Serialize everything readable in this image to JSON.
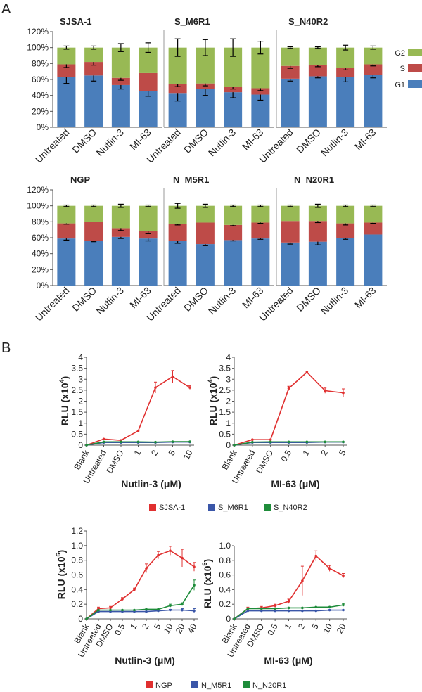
{
  "panel_labels": {
    "a": "A",
    "b": "B"
  },
  "colors": {
    "g1": "#4a7ebb",
    "s": "#be4b48",
    "g2": "#98b954",
    "red": "#e03030",
    "blue": "#3a56a8",
    "green": "#1e8c3a",
    "axis": "#555555"
  },
  "chart_data": [
    {
      "type": "bar",
      "stacked": true,
      "title": "SJSA-1",
      "categories": [
        "Untreated",
        "DMSO",
        "Nutlin-3",
        "MI-63"
      ],
      "series": [
        {
          "name": "G1",
          "values": [
            63,
            65,
            53,
            45
          ],
          "errors": [
            8,
            7,
            5,
            6
          ]
        },
        {
          "name": "S",
          "values": [
            16,
            17,
            9,
            23
          ],
          "errors": [
            4,
            4,
            3,
            0
          ]
        },
        {
          "name": "G2",
          "values": [
            21,
            18,
            38,
            32
          ],
          "errors": [
            2,
            2,
            5,
            6
          ]
        }
      ],
      "yticks": [
        "0%",
        "20%",
        "40%",
        "60%",
        "80%",
        "100%",
        "120%"
      ],
      "ylim": [
        0,
        120
      ]
    },
    {
      "type": "bar",
      "stacked": true,
      "title": "S_M6R1",
      "categories": [
        "Untreated",
        "DMSO",
        "Nutlin-3",
        "MI-63"
      ],
      "series": [
        {
          "name": "G1",
          "values": [
            43,
            48,
            44,
            41
          ],
          "errors": [
            10,
            8,
            7,
            7
          ]
        },
        {
          "name": "S",
          "values": [
            11,
            7,
            7,
            8
          ],
          "errors": [
            3,
            3,
            3,
            3
          ]
        },
        {
          "name": "G2",
          "values": [
            46,
            45,
            49,
            51
          ],
          "errors": [
            11,
            10,
            11,
            8
          ]
        }
      ],
      "yticks": [
        "0%",
        "20%",
        "40%",
        "60%",
        "80%",
        "100%",
        "120%"
      ],
      "ylim": [
        0,
        120
      ]
    },
    {
      "type": "bar",
      "stacked": true,
      "title": "S_N40R2",
      "categories": [
        "Untreated",
        "DMSO",
        "Nutlin-3",
        "MI-63"
      ],
      "series": [
        {
          "name": "G1",
          "values": [
            61,
            64,
            63,
            66
          ],
          "errors": [
            3,
            2,
            6,
            4
          ]
        },
        {
          "name": "S",
          "values": [
            16,
            14,
            12,
            13
          ],
          "errors": [
            3,
            2,
            3,
            2
          ]
        },
        {
          "name": "G2",
          "values": [
            23,
            22,
            25,
            21
          ],
          "errors": [
            1,
            1,
            3,
            2
          ]
        }
      ],
      "yticks": [
        "0%",
        "20%",
        "40%",
        "60%",
        "80%",
        "100%",
        "120%"
      ],
      "ylim": [
        0,
        120
      ]
    },
    {
      "type": "bar",
      "stacked": true,
      "title": "NGP",
      "categories": [
        "Untreated",
        "DMSO",
        "Nutlin-3",
        "MI-63"
      ],
      "series": [
        {
          "name": "G1",
          "values": [
            59,
            56,
            61,
            59
          ],
          "errors": [
            2,
            1,
            2,
            3
          ]
        },
        {
          "name": "S",
          "values": [
            19,
            24,
            11,
            9
          ],
          "errors": [
            1,
            0,
            3,
            3
          ]
        },
        {
          "name": "G2",
          "values": [
            22,
            20,
            28,
            32
          ],
          "errors": [
            1,
            1,
            2,
            1
          ]
        }
      ],
      "yticks": [
        "0%",
        "20%",
        "40%",
        "60%",
        "80%",
        "100%",
        "120%"
      ],
      "ylim": [
        0,
        120
      ]
    },
    {
      "type": "bar",
      "stacked": true,
      "title": "N_M5R1",
      "categories": [
        "Untreated",
        "DMSO",
        "Nutlin-3",
        "MI-63"
      ],
      "series": [
        {
          "name": "G1",
          "values": [
            56,
            52,
            57,
            59
          ],
          "errors": [
            3,
            2,
            1,
            1
          ]
        },
        {
          "name": "S",
          "values": [
            21,
            27,
            19,
            20
          ],
          "errors": [
            1,
            0,
            1,
            1
          ]
        },
        {
          "name": "G2",
          "values": [
            23,
            21,
            24,
            21
          ],
          "errors": [
            3,
            2,
            1,
            1
          ]
        }
      ],
      "yticks": [
        "0%",
        "20%",
        "40%",
        "60%",
        "80%",
        "100%",
        "120%"
      ],
      "ylim": [
        0,
        120
      ]
    },
    {
      "type": "bar",
      "stacked": true,
      "title": "N_N20R1",
      "categories": [
        "Untreated",
        "DMSO",
        "Nutlin-3",
        "MI-63"
      ],
      "series": [
        {
          "name": "G1",
          "values": [
            54,
            55,
            60,
            64
          ],
          "errors": [
            2,
            4,
            2,
            0
          ]
        },
        {
          "name": "S",
          "values": [
            27,
            26,
            18,
            15
          ],
          "errors": [
            0,
            2,
            2,
            1
          ]
        },
        {
          "name": "G2",
          "values": [
            19,
            19,
            22,
            21
          ],
          "errors": [
            1,
            2,
            1,
            1
          ]
        }
      ],
      "yticks": [
        "0%",
        "20%",
        "40%",
        "60%",
        "80%",
        "100%",
        "120%"
      ],
      "ylim": [
        0,
        120
      ]
    },
    {
      "type": "line",
      "categories": [
        "Blank",
        "Untreated",
        "DMSO",
        "1",
        "2",
        "5",
        "10"
      ],
      "ylabel_main": "RLU (x10",
      "ylabel_exp": "4",
      "ylabel_end": ")",
      "xlabel": "Nutlin-3 (μM)",
      "yticks": [
        "0",
        "0.5",
        "1",
        "1.5",
        "2",
        "2.5",
        "3",
        "3.5",
        "4"
      ],
      "ylim": [
        0,
        4
      ],
      "series": [
        {
          "name": "SJSA-1",
          "values": [
            0,
            0.28,
            0.22,
            0.65,
            2.62,
            3.12,
            2.62
          ],
          "errors": [
            0,
            0,
            0,
            0,
            0.25,
            0.28,
            0.08
          ]
        },
        {
          "name": "S_M6R1",
          "values": [
            0,
            0.12,
            0.12,
            0.12,
            0.12,
            0.14,
            0.14
          ],
          "errors": [
            0,
            0,
            0,
            0,
            0,
            0,
            0
          ]
        },
        {
          "name": "S_N40R2",
          "values": [
            0,
            0.15,
            0.15,
            0.15,
            0.14,
            0.16,
            0.16
          ],
          "errors": [
            0,
            0,
            0,
            0,
            0,
            0,
            0
          ]
        }
      ]
    },
    {
      "type": "line",
      "categories": [
        "Blank",
        "Untreated",
        "DMSO",
        "0.5",
        "1",
        "2",
        "5"
      ],
      "ylabel_main": "RLU (x10",
      "ylabel_exp": "4",
      "ylabel_end": ")",
      "xlabel": "MI-63 (μM)",
      "yticks": [
        "0",
        "0.5",
        "1",
        "1.5",
        "2",
        "2.5",
        "3",
        "3.5",
        "4"
      ],
      "ylim": [
        0,
        4
      ],
      "series": [
        {
          "name": "SJSA-1",
          "values": [
            0,
            0.25,
            0.25,
            2.58,
            3.32,
            2.48,
            2.38
          ],
          "errors": [
            0,
            0,
            0,
            0.1,
            0.05,
            0.12,
            0.18
          ]
        },
        {
          "name": "S_M6R1",
          "values": [
            0,
            0.12,
            0.12,
            0.12,
            0.12,
            0.14,
            0.14
          ],
          "errors": [
            0,
            0,
            0,
            0,
            0,
            0,
            0
          ]
        },
        {
          "name": "S_N40R2",
          "values": [
            0,
            0.14,
            0.15,
            0.15,
            0.15,
            0.15,
            0.15
          ],
          "errors": [
            0,
            0,
            0,
            0,
            0,
            0,
            0
          ]
        }
      ]
    },
    {
      "type": "line",
      "categories": [
        "Blank",
        "Untreated",
        "DMSO",
        "0.5",
        "1",
        "2",
        "5",
        "10",
        "20",
        "40"
      ],
      "ylabel_main": "RLU (x10",
      "ylabel_exp": "6",
      "ylabel_end": ")",
      "xlabel": "Nutlin-3 (μM)",
      "yticks": [
        "0",
        "0.2",
        "0.4",
        "0.6",
        "0.8",
        "1.0",
        "1.2"
      ],
      "ylim": [
        0,
        1.2
      ],
      "series": [
        {
          "name": "NGP",
          "values": [
            0,
            0.14,
            0.15,
            0.27,
            0.4,
            0.69,
            0.87,
            0.93,
            0.83,
            0.71
          ],
          "errors": [
            0,
            0.02,
            0.02,
            0.02,
            0.02,
            0.06,
            0.05,
            0.06,
            0.12,
            0.06
          ]
        },
        {
          "name": "N_M5R1",
          "values": [
            0,
            0.1,
            0.1,
            0.1,
            0.1,
            0.1,
            0.11,
            0.12,
            0.12,
            0.11
          ],
          "errors": [
            0,
            0,
            0,
            0,
            0,
            0,
            0,
            0.01,
            0.02,
            0.03
          ]
        },
        {
          "name": "N_N20R1",
          "values": [
            0,
            0.12,
            0.12,
            0.12,
            0.12,
            0.13,
            0.13,
            0.18,
            0.2,
            0.46
          ],
          "errors": [
            0,
            0,
            0,
            0,
            0,
            0,
            0,
            0.02,
            0.02,
            0.07
          ]
        }
      ]
    },
    {
      "type": "line",
      "categories": [
        "Blank",
        "Untreated",
        "DMSO",
        "0.5",
        "1",
        "2",
        "5",
        "10",
        "20"
      ],
      "ylabel_main": "RLU (x10",
      "ylabel_exp": "6",
      "ylabel_end": ")",
      "xlabel": "MI-63 (μM)",
      "yticks": [
        "0",
        "0.2",
        "0.4",
        "0.6",
        "0.8",
        "1.0"
      ],
      "ylim": [
        0,
        1.0
      ],
      "series": [
        {
          "name": "NGP",
          "values": [
            0,
            0.14,
            0.15,
            0.18,
            0.24,
            0.52,
            0.86,
            0.69,
            0.59
          ],
          "errors": [
            0,
            0.02,
            0.02,
            0.02,
            0.03,
            0.2,
            0.07,
            0.04,
            0.03
          ]
        },
        {
          "name": "N_M5R1",
          "values": [
            0,
            0.11,
            0.11,
            0.11,
            0.11,
            0.11,
            0.11,
            0.12,
            0.12
          ],
          "errors": [
            0,
            0,
            0,
            0,
            0,
            0,
            0,
            0,
            0
          ]
        },
        {
          "name": "N_N20R1",
          "values": [
            0,
            0.14,
            0.14,
            0.14,
            0.15,
            0.15,
            0.16,
            0.16,
            0.19
          ],
          "errors": [
            0,
            0,
            0,
            0,
            0,
            0,
            0,
            0,
            0.02
          ]
        }
      ]
    }
  ],
  "legends": {
    "a": [
      "G2",
      "S",
      "G1"
    ],
    "b_top": [
      "SJSA-1",
      "S_M6R1",
      "S_N40R2"
    ],
    "b_bottom": [
      "NGP",
      "N_M5R1",
      "N_N20R1"
    ]
  }
}
